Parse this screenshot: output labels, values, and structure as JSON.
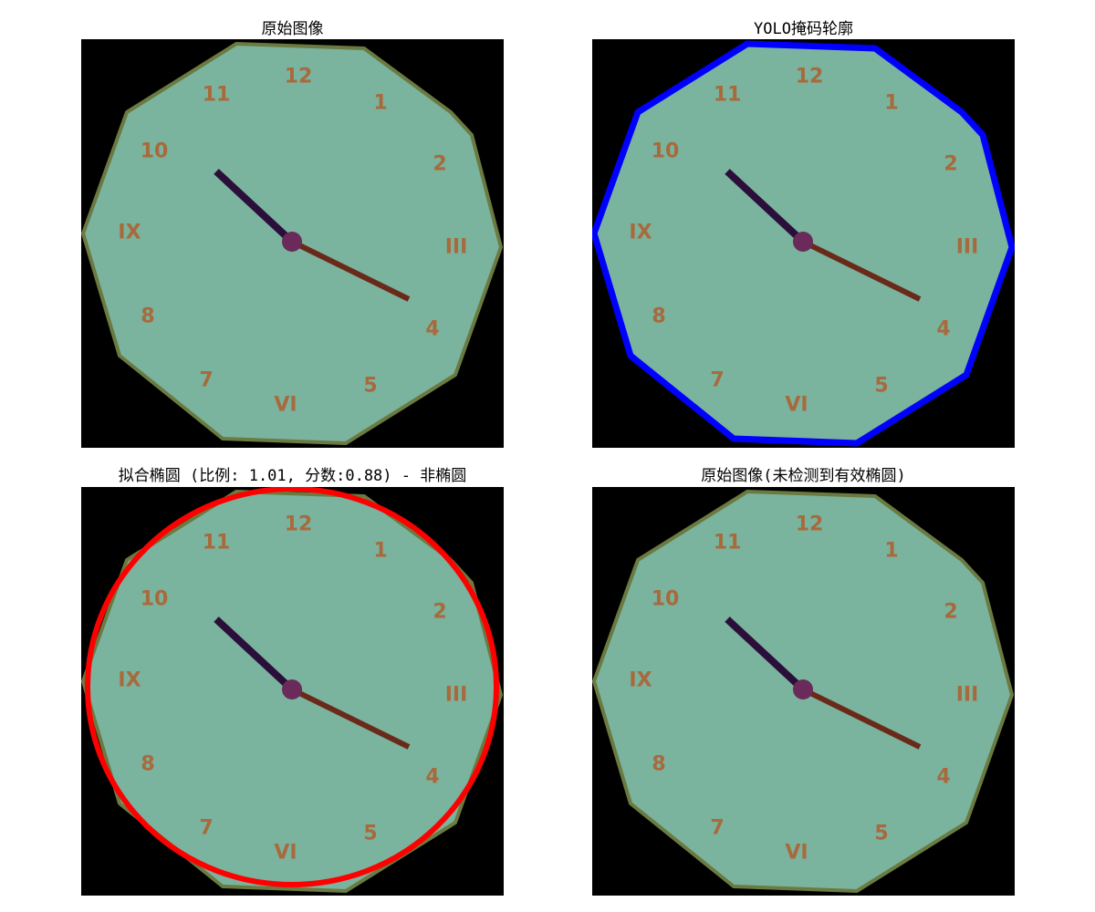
{
  "figure": {
    "panels": [
      {
        "title": "原始图像",
        "overlay": "none"
      },
      {
        "title": "YOLO掩码轮廓",
        "overlay": "contour"
      },
      {
        "title": "拟合椭圆 (比例: 1.01, 分数:0.88) - 非椭圆",
        "overlay": "ellipse"
      },
      {
        "title": "原始图像(未检测到有效椭圆)",
        "overlay": "none"
      }
    ]
  },
  "clock": {
    "numerals": [
      "12",
      "1",
      "2",
      "III",
      "4",
      "5",
      "VI",
      "7",
      "8",
      "IX",
      "10",
      "11"
    ],
    "colors": {
      "face": "#7ab39e",
      "border": "#6a7a40",
      "numeral": "#a86a3c",
      "hour_hand": "#2b0f3a",
      "minute_hand": "#6a2a1a",
      "hub": "#6a2a5a"
    }
  },
  "overlay_colors": {
    "contour": "#0000ff",
    "ellipse": "#ff0000"
  }
}
